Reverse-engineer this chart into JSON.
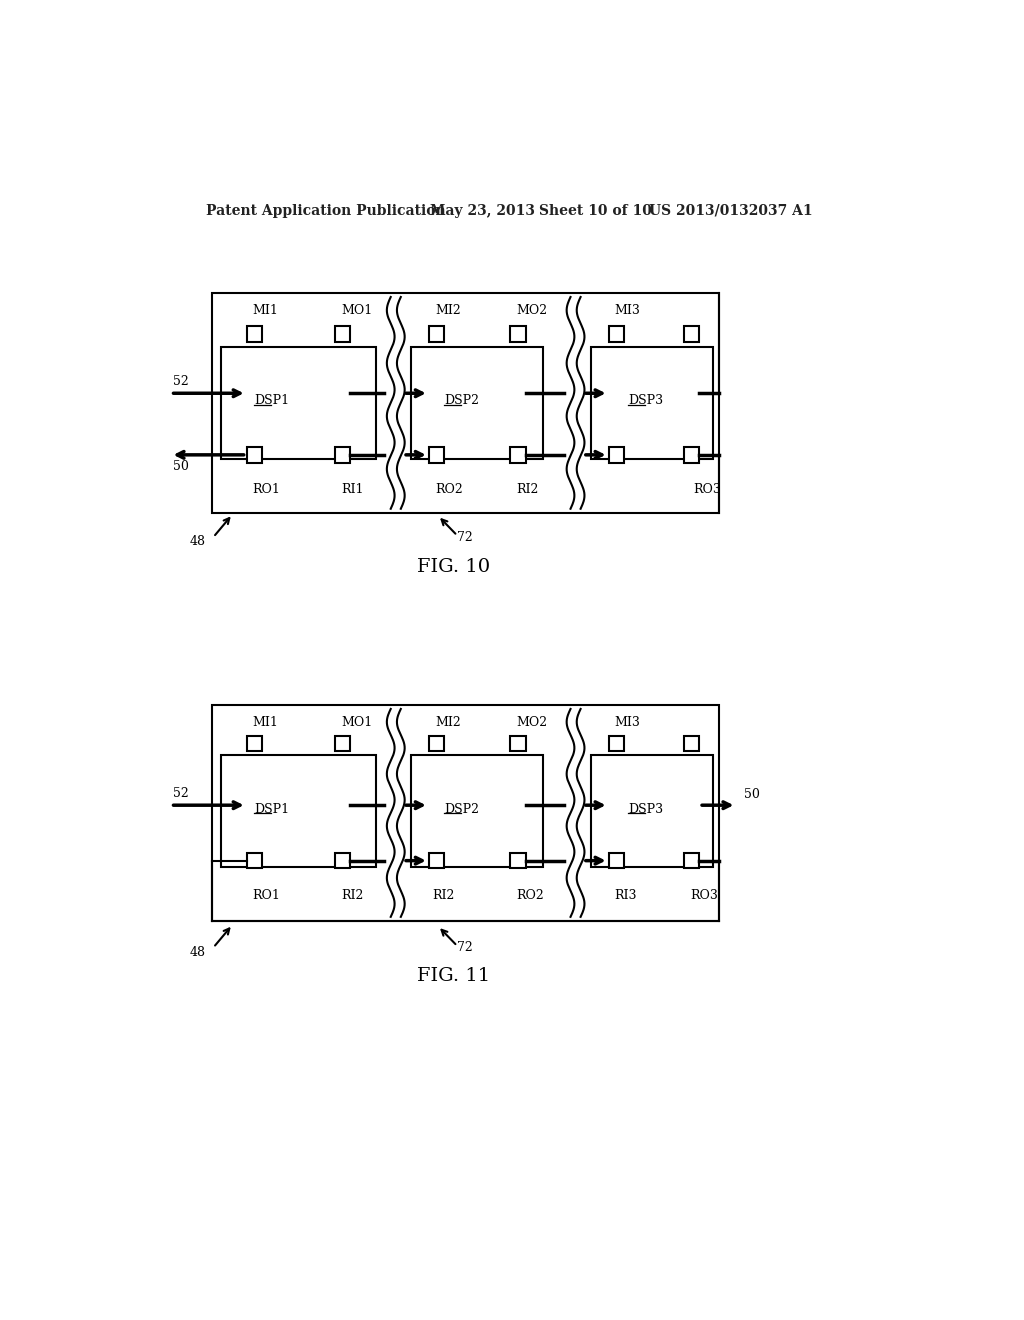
{
  "bg_color": "#ffffff",
  "header_text1": "Patent Application Publication",
  "header_text2": "May 23, 2013",
  "header_text3": "Sheet 10 of 10",
  "header_text4": "US 2013/0132037 A1",
  "fig10_title": "FIG. 10",
  "fig11_title": "FIG. 11"
}
